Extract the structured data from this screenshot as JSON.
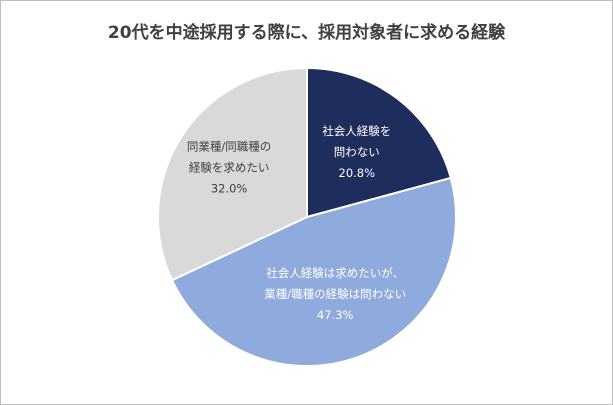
{
  "chart_data": {
    "type": "pie",
    "title": "20代を中途採用する際に、採用対象者に求める経験",
    "slices": [
      {
        "label_lines": [
          "社会人経験を",
          "問わない"
        ],
        "value_label": "20.8%",
        "value": 20.8,
        "color": "#1f2d5c",
        "label_color": "#ffffff"
      },
      {
        "label_lines": [
          "社会人経験は求めたいが、",
          "業種/職種の経験は問わない"
        ],
        "value_label": "47.3%",
        "value": 47.3,
        "color": "#8faadc",
        "label_color": "#ffffff"
      },
      {
        "label_lines": [
          "同業種/同職種の",
          "経験を求めたい"
        ],
        "value_label": "32.0%",
        "value": 32.0,
        "color": "#d9d9d9",
        "label_color": "#404040"
      }
    ]
  }
}
